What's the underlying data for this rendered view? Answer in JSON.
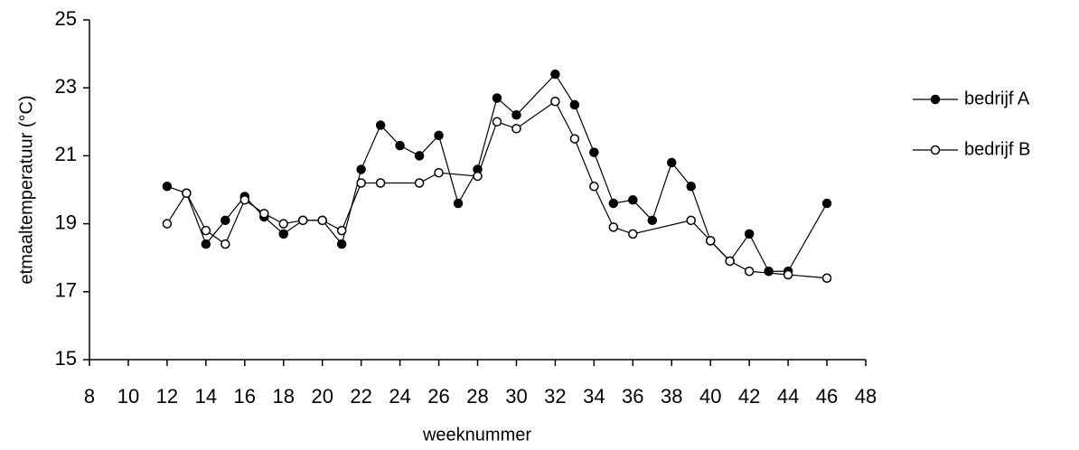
{
  "chart_data": {
    "type": "line",
    "x_label": "weeknummer",
    "y_label": "etmaaltemperatuur (°C)",
    "xlim": [
      8,
      48
    ],
    "xticks": [
      8,
      10,
      12,
      14,
      16,
      18,
      20,
      22,
      24,
      26,
      28,
      30,
      32,
      34,
      36,
      38,
      40,
      42,
      44,
      46,
      48
    ],
    "ylim": [
      15,
      25
    ],
    "yticks": [
      15,
      17,
      19,
      21,
      23,
      25
    ],
    "grid": false,
    "legend": "right",
    "series": [
      {
        "name": "bedrijf A",
        "color": "#000000",
        "marker": "filled",
        "x": [
          12,
          13,
          14,
          15,
          16,
          17,
          18,
          19,
          20,
          21,
          22,
          23,
          24,
          25,
          26,
          27,
          28,
          29,
          30,
          32,
          33,
          34,
          35,
          36,
          37,
          38,
          39,
          40,
          41,
          42,
          43,
          44,
          46
        ],
        "values": [
          20.1,
          19.9,
          18.4,
          19.1,
          19.8,
          19.2,
          18.7,
          19.1,
          19.1,
          18.4,
          20.6,
          21.9,
          21.3,
          21.0,
          21.6,
          19.6,
          20.6,
          22.7,
          22.2,
          23.4,
          22.5,
          21.1,
          19.6,
          19.7,
          19.1,
          20.8,
          20.1,
          18.5,
          17.9,
          18.7,
          17.6,
          17.6,
          19.6
        ]
      },
      {
        "name": "bedrijf B",
        "color": "#000000",
        "marker": "open",
        "x": [
          12,
          13,
          14,
          15,
          16,
          17,
          18,
          19,
          20,
          21,
          22,
          23,
          25,
          26,
          28,
          29,
          30,
          32,
          33,
          34,
          35,
          36,
          39,
          40,
          41,
          42,
          44,
          46
        ],
        "values": [
          19.0,
          19.9,
          18.8,
          18.4,
          19.7,
          19.3,
          19.0,
          19.1,
          19.1,
          18.8,
          20.2,
          20.2,
          20.2,
          20.5,
          20.4,
          22.0,
          21.8,
          22.6,
          21.5,
          20.1,
          18.9,
          18.7,
          19.1,
          18.5,
          17.9,
          17.6,
          17.5,
          17.4
        ]
      }
    ]
  }
}
